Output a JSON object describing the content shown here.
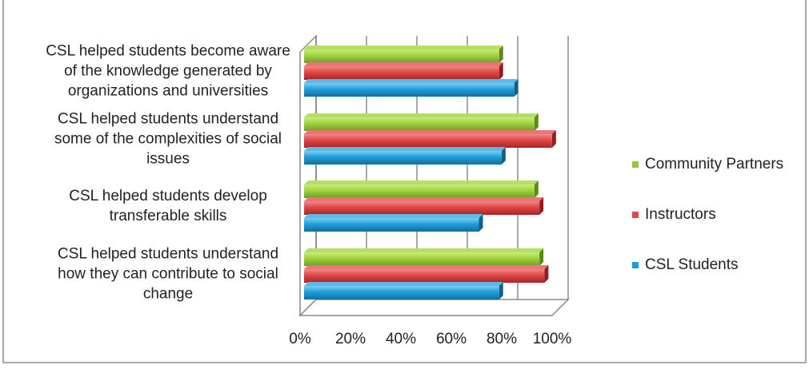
{
  "chart_data": {
    "type": "bar",
    "orientation": "horizontal",
    "three_d": true,
    "categories": [
      [
        "CSL helped students become aware",
        "of the knowledge generated by",
        "organizations and universities"
      ],
      [
        "CSL helped students understand",
        "some of the complexities of social",
        "issues"
      ],
      [
        "CSL helped students develop",
        "transferable skills"
      ],
      [
        "CSL helped students understand",
        "how they can contribute to social",
        "change"
      ]
    ],
    "series": [
      {
        "name": "Community Partners",
        "color": "#92c83e",
        "values": [
          78,
          92,
          92,
          94
        ]
      },
      {
        "name": "Instructors",
        "color": "#dc4a4a",
        "values": [
          78,
          99,
          94,
          96
        ]
      },
      {
        "name": "CSL Students",
        "color": "#1e9ad6",
        "values": [
          84,
          79,
          70,
          78
        ]
      }
    ],
    "xlim": [
      0,
      100
    ],
    "xticks": [
      "0%",
      "20%",
      "40%",
      "60%",
      "80%",
      "100%"
    ],
    "grid": true,
    "legend_position": "right",
    "title": "",
    "xlabel": "",
    "ylabel": ""
  }
}
